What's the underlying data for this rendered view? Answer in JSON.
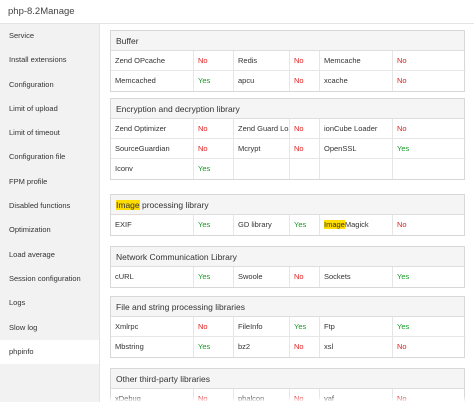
{
  "window": {
    "title": "php-8.2Manage"
  },
  "sidebar": {
    "items": [
      {
        "label": "Service"
      },
      {
        "label": "Install extensions"
      },
      {
        "label": "Configuration"
      },
      {
        "label": "Limit of upload"
      },
      {
        "label": "Limit of timeout"
      },
      {
        "label": "Configuration file"
      },
      {
        "label": "FPM profile"
      },
      {
        "label": "Disabled functions"
      },
      {
        "label": "Optimization"
      },
      {
        "label": "Load average"
      },
      {
        "label": "Session configuration"
      },
      {
        "label": "Logs"
      },
      {
        "label": "Slow log"
      },
      {
        "label": "phpinfo"
      }
    ],
    "active_index": 13
  },
  "colors": {
    "yes": "#1a9a2a",
    "no": "#e02020",
    "highlight": "#ffdd00"
  },
  "sections": [
    {
      "title": "Buffer",
      "rows": [
        [
          {
            "name": "Zend OPcache",
            "status": "No"
          },
          {
            "name": "Redis",
            "status": "No"
          },
          {
            "name": "Memcache",
            "status": "No"
          }
        ],
        [
          {
            "name": "Memcached",
            "status": "Yes"
          },
          {
            "name": "apcu",
            "status": "No"
          },
          {
            "name": "xcache",
            "status": "No"
          }
        ]
      ]
    },
    {
      "title": "Encryption and decryption library",
      "rows": [
        [
          {
            "name": "Zend Optimizer",
            "status": "No"
          },
          {
            "name": "Zend Guard Loader",
            "status": "No"
          },
          {
            "name": "ionCube Loader",
            "status": "No"
          }
        ],
        [
          {
            "name": "SourceGuardian",
            "status": "No"
          },
          {
            "name": "Mcrypt",
            "status": "No"
          },
          {
            "name": "OpenSSL",
            "status": "Yes"
          }
        ],
        [
          {
            "name": "Iconv",
            "status": "Yes"
          },
          {
            "name": "",
            "status": ""
          },
          {
            "name": "",
            "status": ""
          }
        ]
      ]
    },
    {
      "title_highlight": "Image",
      "title_rest": " processing library",
      "rows": [
        [
          {
            "name": "EXIF",
            "status": "Yes"
          },
          {
            "name": "GD library",
            "status": "Yes"
          },
          {
            "name_highlight": "Image",
            "name_rest": "Magick",
            "status": "No"
          }
        ]
      ]
    },
    {
      "title": "Network Communication Library",
      "rows": [
        [
          {
            "name": "cURL",
            "status": "Yes"
          },
          {
            "name": "Swoole",
            "status": "No"
          },
          {
            "name": "Sockets",
            "status": "Yes"
          }
        ]
      ]
    },
    {
      "title": "File and string processing libraries",
      "rows": [
        [
          {
            "name": "Xmlrpc",
            "status": "No"
          },
          {
            "name": "FileInfo",
            "status": "Yes"
          },
          {
            "name": "Ftp",
            "status": "Yes"
          }
        ],
        [
          {
            "name": "Mbstring",
            "status": "Yes"
          },
          {
            "name": "bz2",
            "status": "No"
          },
          {
            "name": "xsl",
            "status": "No"
          }
        ]
      ]
    },
    {
      "title": "Other third-party libraries",
      "rows": [
        [
          {
            "name": "xDebug",
            "status": "No"
          },
          {
            "name": "phalcon",
            "status": "No"
          },
          {
            "name": "yaf",
            "status": "No"
          }
        ]
      ]
    }
  ]
}
